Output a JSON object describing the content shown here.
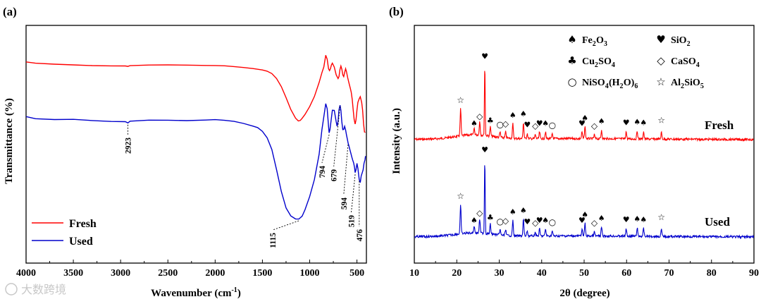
{
  "watermark": "大数跨境",
  "colors": {
    "fresh": "#ff0000",
    "used": "#0000cc",
    "axis": "#000000"
  },
  "chart_data": [
    {
      "type": "line",
      "panel_label": "(a)",
      "title": "",
      "xlabel": "Wavenumber (cm",
      "xlabel_sup": "-1",
      "xlabel_tail": ")",
      "ylabel": "Transmittance (%)",
      "xlim": [
        4000,
        400
      ],
      "x_ticks": [
        4000,
        3500,
        3000,
        2500,
        2000,
        1500,
        1000,
        500
      ],
      "x_tick_labels": [
        "4000",
        "3500",
        "3000",
        "2500",
        "2000",
        "1500",
        "1000",
        "500"
      ],
      "legend": {
        "position": "bottom-left",
        "entries": [
          "Fresh",
          "Used"
        ]
      },
      "annotations": [
        {
          "label": "2923",
          "x": 2923,
          "series": "Used"
        },
        {
          "label": "1115",
          "x": 1115,
          "series": "Used"
        },
        {
          "label": "794",
          "x": 794,
          "series": "Used"
        },
        {
          "label": "679",
          "x": 679,
          "series": "Used"
        },
        {
          "label": "594",
          "x": 594,
          "series": "Used"
        },
        {
          "label": "519",
          "x": 519,
          "series": "Used"
        },
        {
          "label": "476",
          "x": 476,
          "series": "Used"
        }
      ],
      "series": [
        {
          "name": "Fresh",
          "x": [
            4000,
            3900,
            3700,
            3500,
            3300,
            3100,
            2950,
            2923,
            2900,
            2700,
            2500,
            2300,
            2100,
            2000,
            1900,
            1800,
            1700,
            1600,
            1500,
            1450,
            1400,
            1350,
            1300,
            1250,
            1200,
            1150,
            1120,
            1100,
            1080,
            1050,
            1000,
            950,
            900,
            870,
            850,
            830,
            815,
            800,
            790,
            780,
            770,
            760,
            740,
            720,
            700,
            690,
            680,
            670,
            660,
            650,
            640,
            630,
            620,
            610,
            600,
            590,
            580,
            570,
            560,
            550,
            540,
            530,
            519,
            510,
            500,
            490,
            476,
            465,
            450,
            440,
            430,
            420,
            410
          ],
          "y": [
            93,
            91.5,
            90.5,
            90,
            89.5,
            89.2,
            89,
            88.3,
            89,
            89.8,
            90.2,
            90,
            89.5,
            89.2,
            88.8,
            88.2,
            87.5,
            86.5,
            85,
            83.5,
            81,
            76,
            68,
            57,
            45,
            36,
            33,
            33.5,
            36,
            40,
            48,
            58,
            72,
            82,
            88,
            100,
            96,
            86,
            84,
            86,
            90,
            92,
            88,
            80,
            76,
            78,
            85,
            89,
            86,
            80,
            78,
            82,
            86,
            83,
            78,
            74,
            70,
            66,
            62,
            55,
            45,
            35,
            30,
            34,
            44,
            52,
            56,
            58,
            52,
            44,
            30,
            22,
            22
          ]
        },
        {
          "name": "Used",
          "x": [
            4000,
            3900,
            3700,
            3500,
            3300,
            3100,
            2950,
            2923,
            2900,
            2700,
            2500,
            2300,
            2100,
            2000,
            1900,
            1800,
            1700,
            1600,
            1550,
            1500,
            1450,
            1400,
            1350,
            1300,
            1250,
            1200,
            1150,
            1115,
            1080,
            1050,
            1000,
            950,
            900,
            870,
            850,
            830,
            815,
            800,
            794,
            785,
            775,
            760,
            740,
            720,
            710,
            700,
            690,
            679,
            670,
            660,
            650,
            640,
            630,
            620,
            610,
            600,
            594,
            585,
            575,
            565,
            555,
            545,
            535,
            525,
            519,
            510,
            500,
            490,
            476,
            465,
            455,
            445,
            435,
            425,
            415,
            410
          ],
          "y": [
            58,
            56.5,
            56,
            56.3,
            55.8,
            55.3,
            55,
            54,
            55,
            55.8,
            56,
            55.8,
            56,
            56,
            55.5,
            55,
            54,
            52.5,
            51.5,
            49,
            45,
            38,
            26,
            13,
            3,
            -2,
            -4,
            -4,
            -2,
            2,
            10,
            20,
            35,
            50,
            58,
            66,
            63,
            52,
            48,
            50,
            55,
            62,
            62,
            55,
            52,
            55,
            62,
            65,
            62,
            55,
            50,
            50,
            52,
            50,
            47,
            44,
            42,
            40,
            38,
            36,
            34,
            32,
            30,
            27,
            24,
            26,
            30,
            27,
            20,
            18,
            22,
            24,
            26,
            30,
            32,
            34
          ]
        }
      ]
    },
    {
      "type": "line",
      "panel_label": "(b)",
      "title": "",
      "xlabel": "2θ (degree)",
      "ylabel": "Intensity (a.u.)",
      "xlim": [
        10,
        90
      ],
      "x_ticks": [
        10,
        20,
        30,
        40,
        50,
        60,
        70,
        80,
        90
      ],
      "x_tick_labels": [
        "10",
        "20",
        "30",
        "40",
        "50",
        "60",
        "70",
        "80",
        "90"
      ],
      "series_labels": [
        "Fresh",
        "Used"
      ],
      "legend": {
        "position": "top-right",
        "entries": [
          {
            "symbol": "♠",
            "base": "Fe",
            "sub1": "2",
            "mid": "O",
            "sub2": "3",
            "tail": ""
          },
          {
            "symbol": "♥",
            "base": "SiO",
            "sub1": "2",
            "mid": "",
            "sub2": "",
            "tail": ""
          },
          {
            "symbol": "♣",
            "base": "Cu",
            "sub1": "2",
            "mid": "SO",
            "sub2": "4",
            "tail": ""
          },
          {
            "symbol": "◇",
            "base": "CaSO",
            "sub1": "4",
            "mid": "",
            "sub2": "",
            "tail": ""
          },
          {
            "symbol": "○",
            "base": "NiSO",
            "sub1": "4",
            "mid": "(H",
            "sub2": "2",
            "tail": "O)",
            "sub3": "6"
          },
          {
            "symbol": "☆",
            "base": "Al",
            "sub1": "2",
            "mid": "SiO",
            "sub2": "5",
            "tail": ""
          }
        ]
      },
      "peaks": [
        {
          "x": 20.9,
          "h": 40,
          "symbol": "☆"
        },
        {
          "x": 24.1,
          "h": 10,
          "symbol": "♠"
        },
        {
          "x": 25.4,
          "h": 20,
          "symbol": "◇"
        },
        {
          "x": 26.6,
          "h": 108,
          "symbol": "♥"
        },
        {
          "x": 27.9,
          "h": 14,
          "symbol": "♣"
        },
        {
          "x": 30.2,
          "h": 8,
          "symbol": "○"
        },
        {
          "x": 31.5,
          "h": 9,
          "symbol": "◇"
        },
        {
          "x": 33.2,
          "h": 22,
          "symbol": "♠"
        },
        {
          "x": 35.7,
          "h": 24,
          "symbol": "♠"
        },
        {
          "x": 36.6,
          "h": 8,
          "symbol": "♥"
        },
        {
          "x": 38.5,
          "h": 6,
          "symbol": "◇"
        },
        {
          "x": 39.5,
          "h": 10,
          "symbol": "♥"
        },
        {
          "x": 40.9,
          "h": 10,
          "symbol": "♠"
        },
        {
          "x": 42.5,
          "h": 7,
          "symbol": "○"
        },
        {
          "x": 49.5,
          "h": 10,
          "symbol": "♥"
        },
        {
          "x": 50.2,
          "h": 18,
          "symbol": "♠"
        },
        {
          "x": 52.4,
          "h": 6,
          "symbol": "◇"
        },
        {
          "x": 54.1,
          "h": 13,
          "symbol": "♠"
        },
        {
          "x": 59.9,
          "h": 11,
          "symbol": "♥"
        },
        {
          "x": 62.5,
          "h": 12,
          "symbol": "♠"
        },
        {
          "x": 64.0,
          "h": 11,
          "symbol": "♠"
        },
        {
          "x": 68.2,
          "h": 10,
          "symbol": "☆"
        }
      ]
    }
  ]
}
